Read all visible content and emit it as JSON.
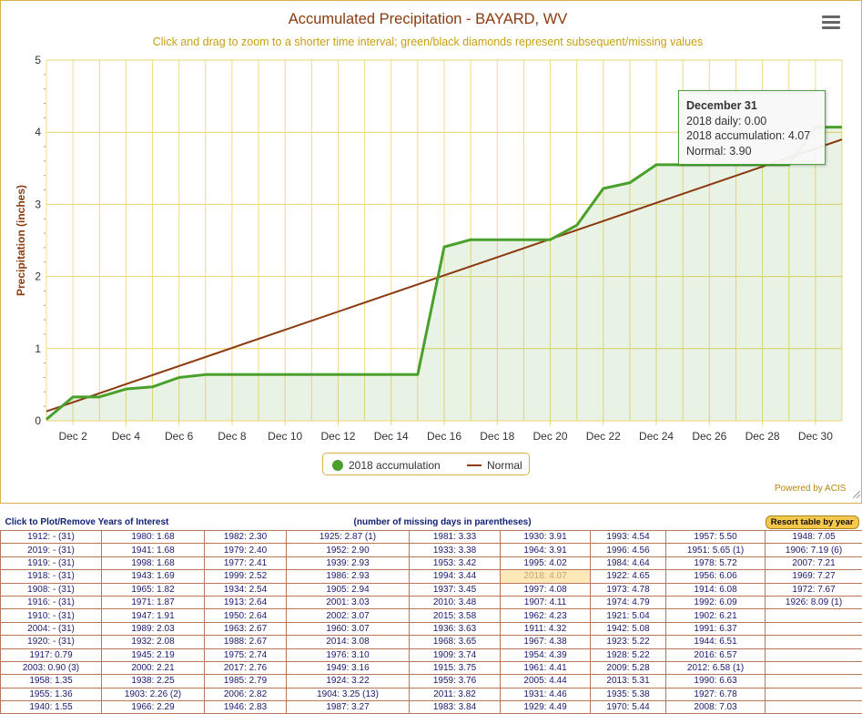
{
  "chart_data": {
    "type": "line",
    "title": "Accumulated Precipitation - BAYARD, WV",
    "subtitle": "Click and drag to zoom to a shorter time interval; green/black diamonds represent subsequent/missing values",
    "ylabel": "Precipitation (inches)",
    "xlabel": "",
    "ylim": [
      0,
      5
    ],
    "yticks": [
      "0",
      "1",
      "2",
      "3",
      "4",
      "5"
    ],
    "x_days": [
      1,
      31
    ],
    "xtick_days": [
      2,
      4,
      6,
      8,
      10,
      12,
      14,
      16,
      18,
      20,
      22,
      24,
      26,
      28,
      30
    ],
    "xtick_labels": [
      "Dec 2",
      "Dec 4",
      "Dec 6",
      "Dec 8",
      "Dec 10",
      "Dec 12",
      "Dec 14",
      "Dec 16",
      "Dec 18",
      "Dec 20",
      "Dec 22",
      "Dec 24",
      "Dec 26",
      "Dec 28",
      "Dec 30"
    ],
    "series": [
      {
        "name": "2018 accumulation",
        "color": "#4aa02c",
        "x": [
          1,
          2,
          3,
          4,
          5,
          6,
          7,
          8,
          9,
          10,
          11,
          12,
          13,
          14,
          15,
          16,
          17,
          18,
          19,
          20,
          21,
          22,
          23,
          24,
          25,
          26,
          27,
          28,
          29,
          30,
          31
        ],
        "values": [
          0.02,
          0.33,
          0.33,
          0.44,
          0.47,
          0.6,
          0.64,
          0.64,
          0.64,
          0.64,
          0.64,
          0.64,
          0.64,
          0.64,
          0.64,
          2.41,
          2.51,
          2.51,
          2.51,
          2.51,
          2.71,
          3.22,
          3.3,
          3.55,
          3.55,
          3.55,
          3.55,
          3.55,
          3.55,
          4.07,
          4.07
        ]
      },
      {
        "name": "Normal",
        "color": "#8b3a0f",
        "x": [
          1,
          31
        ],
        "values": [
          0.13,
          3.9
        ]
      }
    ],
    "legend": [
      "2018 accumulation",
      "Normal"
    ],
    "legend_position": "bottom-center",
    "grid": true
  },
  "tooltip": {
    "title": "December 31",
    "daily": "2018 daily: 0.00",
    "accum": "2018 accumulation: 4.07",
    "normal": "Normal: 3.90"
  },
  "powered_by": "Powered by ACIS",
  "menu_icon": "hamburger-menu-icon",
  "table": {
    "header_left": "Click to Plot/Remove Years of Interest",
    "header_mid": "(number of missing days in parentheses)",
    "resort_label": "Resort table by year",
    "highlight": "2018: 4.07",
    "rows": [
      [
        "1912: - (31)",
        "1980: 1.68",
        "1982: 2.30",
        "1925: 2.87 (1)",
        "1981: 3.33",
        "1930: 3.91",
        "1993: 4.54",
        "1957: 5.50",
        "1948: 7.05"
      ],
      [
        "2019: - (31)",
        "1941: 1.68",
        "1979: 2.40",
        "1952: 2.90",
        "1933: 3.38",
        "1964: 3.91",
        "1996: 4.56",
        "1951: 5.65 (1)",
        "1906: 7.19 (6)"
      ],
      [
        "1919: - (31)",
        "1998: 1.68",
        "1977: 2.41",
        "1939: 2.93",
        "1953: 3.42",
        "1995: 4.02",
        "1984: 4.64",
        "1978: 5.72",
        "2007: 7.21"
      ],
      [
        "1918: - (31)",
        "1943: 1.69",
        "1999: 2.52",
        "1986: 2.93",
        "1994: 3.44",
        "2018: 4.07",
        "1922: 4.65",
        "1956: 6.06",
        "1969: 7.27"
      ],
      [
        "1908: - (31)",
        "1965: 1.82",
        "1934: 2.54",
        "1905: 2.94",
        "1937: 3.45",
        "1997: 4.08",
        "1973: 4.78",
        "1914: 6.08",
        "1972: 7.67"
      ],
      [
        "1916: - (31)",
        "1971: 1.87",
        "1913: 2.64",
        "2001: 3.03",
        "2010: 3.48",
        "1907: 4.11",
        "1974: 4.79",
        "1992: 6.09",
        "1926: 8.09 (1)"
      ],
      [
        "1910: - (31)",
        "1947: 1.91",
        "1950: 2.64",
        "2002: 3.07",
        "2015: 3.58",
        "1962: 4.23",
        "1921: 5.04",
        "1902: 6.21",
        ""
      ],
      [
        "2004: - (31)",
        "1989: 2.03",
        "1963: 2.67",
        "1960: 3.07",
        "1936: 3.63",
        "1911: 4.32",
        "1942: 5.08",
        "1991: 6.37",
        ""
      ],
      [
        "1920: - (31)",
        "1932: 2.08",
        "1988: 2.67",
        "2014: 3.08",
        "1968: 3.65",
        "1967: 4.38",
        "1923: 5.22",
        "1944: 6.51",
        ""
      ],
      [
        "1917: 0.79",
        "1945: 2.19",
        "1975: 2.74",
        "1976: 3.10",
        "1909: 3.74",
        "1954: 4.39",
        "1928: 5.22",
        "2016: 6.57",
        ""
      ],
      [
        "2003: 0.90 (3)",
        "2000: 2.21",
        "2017: 2.76",
        "1949: 3.16",
        "1915: 3.75",
        "1961: 4.41",
        "2009: 5.28",
        "2012: 6.58 (1)",
        ""
      ],
      [
        "1958: 1.35",
        "1938: 2.25",
        "1985: 2.79",
        "1924: 3.22",
        "1959: 3.76",
        "2005: 4.44",
        "2013: 5.31",
        "1990: 6.63",
        ""
      ],
      [
        "1955: 1.36",
        "1903: 2.26 (2)",
        "2006: 2.82",
        "1904: 3.25 (13)",
        "2011: 3.82",
        "1931: 4.46",
        "1935: 5.38",
        "1927: 6.78",
        ""
      ],
      [
        "1940: 1.55",
        "1966: 2.29",
        "1946: 2.83",
        "1987: 3.27",
        "1983: 3.84",
        "1929: 4.49",
        "1970: 5.44",
        "2008: 7.03",
        ""
      ]
    ]
  }
}
